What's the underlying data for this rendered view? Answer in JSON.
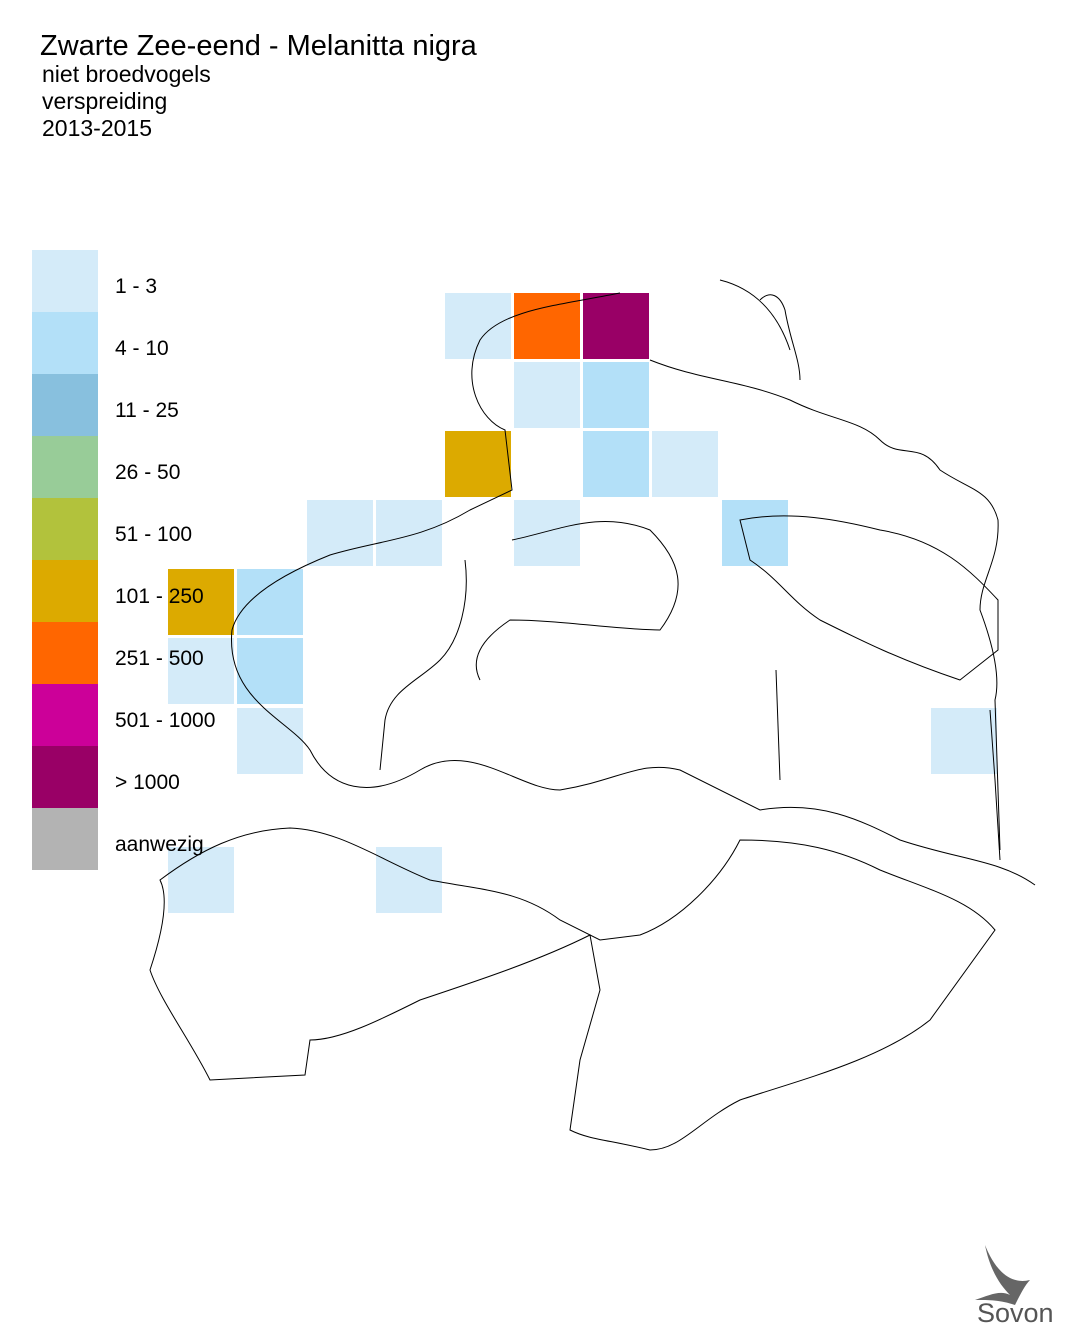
{
  "header": {
    "title": "Zwarte Zee-eend - Melanitta nigra",
    "lines": [
      "niet broedvogels",
      "verspreiding",
      "2013-2015"
    ]
  },
  "legend": [
    {
      "label": "1 - 3",
      "color": "#d4ebf9"
    },
    {
      "label": "4 - 10",
      "color": "#b3e0f8"
    },
    {
      "label": "11 - 25",
      "color": "#88c0de"
    },
    {
      "label": "26 - 50",
      "color": "#98cc98"
    },
    {
      "label": "51 - 100",
      "color": "#b2c23c"
    },
    {
      "label": "101 - 250",
      "color": "#dcaa00"
    },
    {
      "label": "251 - 500",
      "color": "#ff6600"
    },
    {
      "label": "501 - 1000",
      "color": "#cc0099"
    },
    {
      "label": "> 1000",
      "color": "#990066"
    },
    {
      "label": "aanwezig",
      "color": "#b3b3b3"
    }
  ],
  "logo": "Sovon"
}
